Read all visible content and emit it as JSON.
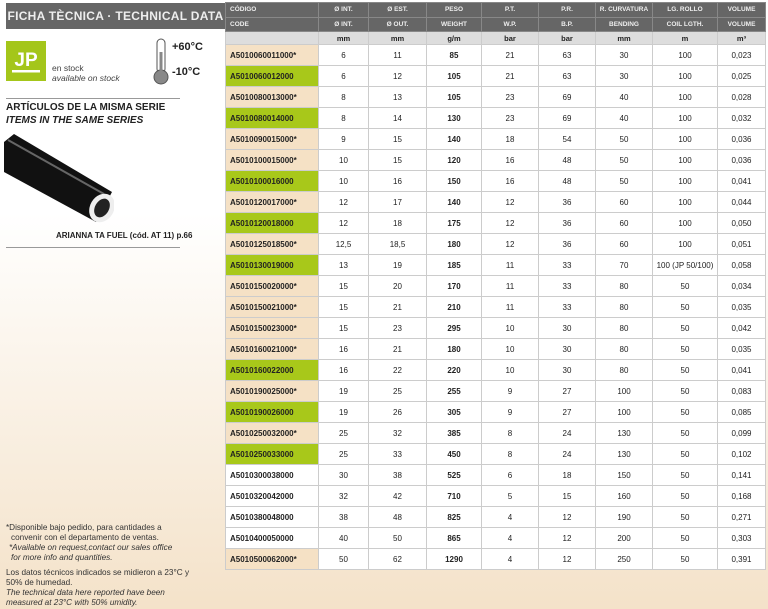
{
  "title": "FICHA TÈCNICA · TECHNICAL DATA",
  "logo": "JP",
  "stock": {
    "es": "en stock",
    "en": "available on stock"
  },
  "temperature": {
    "max": "+60°C",
    "min": "-10°C"
  },
  "series": {
    "es": "ARTÍCULOS DE LA MISMA SERIE",
    "en": "ITEMS IN THE SAME SERIES",
    "caption": "ARIANNA TA FUEL (cód. AT 11) p.66"
  },
  "notes": {
    "n1": "*Disponible bajo pedido, para cantidades a",
    "n2": "convenir con el departamento de ventas.",
    "n3": "*Available on request,contact our sales office",
    "n4": "for more info and quantities.",
    "n5": "Los datos técnicos indicados se midieron a 23°C y",
    "n6": "50% de humedad.",
    "n7": "The technical data here reported have been",
    "n8": "measured at 23°C with 50% umidity."
  },
  "colors": {
    "green": "#a8c81a",
    "beige": "#f5e1c5",
    "header": "#666666"
  },
  "table": {
    "header_es": [
      "CÓDIGO",
      "Ø INT.",
      "Ø EST.",
      "PESO",
      "P.T.",
      "P.R.",
      "R. CURVATURA",
      "LG. ROLLO",
      "VOLUME"
    ],
    "header_en": [
      "CODE",
      "Ø INT.",
      "Ø OUT.",
      "WEIGHT",
      "W.P.",
      "B.P.",
      "BENDING",
      "COIL LGTH.",
      "VOLUME"
    ],
    "units": [
      "",
      "mm",
      "mm",
      "g/m",
      "bar",
      "bar",
      "mm",
      "m",
      "m³"
    ],
    "rows": [
      {
        "status": "beige",
        "cells": [
          "A5010060011000*",
          "6",
          "11",
          "85",
          "21",
          "63",
          "30",
          "100",
          "0,023"
        ]
      },
      {
        "status": "green",
        "cells": [
          "A5010060012000",
          "6",
          "12",
          "105",
          "21",
          "63",
          "30",
          "100",
          "0,025"
        ]
      },
      {
        "status": "beige",
        "cells": [
          "A5010080013000*",
          "8",
          "13",
          "105",
          "23",
          "69",
          "40",
          "100",
          "0,028"
        ]
      },
      {
        "status": "green",
        "cells": [
          "A5010080014000",
          "8",
          "14",
          "130",
          "23",
          "69",
          "40",
          "100",
          "0,032"
        ]
      },
      {
        "status": "beige",
        "cells": [
          "A5010090015000*",
          "9",
          "15",
          "140",
          "18",
          "54",
          "50",
          "100",
          "0,036"
        ]
      },
      {
        "status": "beige",
        "cells": [
          "A5010100015000*",
          "10",
          "15",
          "120",
          "16",
          "48",
          "50",
          "100",
          "0,036"
        ]
      },
      {
        "status": "green",
        "cells": [
          "A5010100016000",
          "10",
          "16",
          "150",
          "16",
          "48",
          "50",
          "100",
          "0,041"
        ]
      },
      {
        "status": "beige",
        "cells": [
          "A5010120017000*",
          "12",
          "17",
          "140",
          "12",
          "36",
          "60",
          "100",
          "0,044"
        ]
      },
      {
        "status": "green",
        "cells": [
          "A5010120018000",
          "12",
          "18",
          "175",
          "12",
          "36",
          "60",
          "100",
          "0,050"
        ]
      },
      {
        "status": "beige",
        "cells": [
          "A5010125018500*",
          "12,5",
          "18,5",
          "180",
          "12",
          "36",
          "60",
          "100",
          "0,051"
        ]
      },
      {
        "status": "green",
        "cells": [
          "A5010130019000",
          "13",
          "19",
          "185",
          "11",
          "33",
          "70",
          "100 (JP 50/100)",
          "0,058"
        ]
      },
      {
        "status": "beige",
        "cells": [
          "A5010150020000*",
          "15",
          "20",
          "170",
          "11",
          "33",
          "80",
          "50",
          "0,034"
        ]
      },
      {
        "status": "beige",
        "cells": [
          "A5010150021000*",
          "15",
          "21",
          "210",
          "11",
          "33",
          "80",
          "50",
          "0,035"
        ]
      },
      {
        "status": "beige",
        "cells": [
          "A5010150023000*",
          "15",
          "23",
          "295",
          "10",
          "30",
          "80",
          "50",
          "0,042"
        ]
      },
      {
        "status": "beige",
        "cells": [
          "A5010160021000*",
          "16",
          "21",
          "180",
          "10",
          "30",
          "80",
          "50",
          "0,035"
        ]
      },
      {
        "status": "green",
        "cells": [
          "A5010160022000",
          "16",
          "22",
          "220",
          "10",
          "30",
          "80",
          "50",
          "0,041"
        ]
      },
      {
        "status": "beige",
        "cells": [
          "A5010190025000*",
          "19",
          "25",
          "255",
          "9",
          "27",
          "100",
          "50",
          "0,083"
        ]
      },
      {
        "status": "green",
        "cells": [
          "A5010190026000",
          "19",
          "26",
          "305",
          "9",
          "27",
          "100",
          "50",
          "0,085"
        ]
      },
      {
        "status": "beige",
        "cells": [
          "A5010250032000*",
          "25",
          "32",
          "385",
          "8",
          "24",
          "130",
          "50",
          "0,099"
        ]
      },
      {
        "status": "green",
        "cells": [
          "A5010250033000",
          "25",
          "33",
          "450",
          "8",
          "24",
          "130",
          "50",
          "0,102"
        ]
      },
      {
        "status": "white",
        "cells": [
          "A5010300038000",
          "30",
          "38",
          "525",
          "6",
          "18",
          "150",
          "50",
          "0,141"
        ]
      },
      {
        "status": "white",
        "cells": [
          "A5010320042000",
          "32",
          "42",
          "710",
          "5",
          "15",
          "160",
          "50",
          "0,168"
        ]
      },
      {
        "status": "white",
        "cells": [
          "A5010380048000",
          "38",
          "48",
          "825",
          "4",
          "12",
          "190",
          "50",
          "0,271"
        ]
      },
      {
        "status": "white",
        "cells": [
          "A5010400050000",
          "40",
          "50",
          "865",
          "4",
          "12",
          "200",
          "50",
          "0,303"
        ]
      },
      {
        "status": "beige",
        "cells": [
          "A5010500062000*",
          "50",
          "62",
          "1290",
          "4",
          "12",
          "250",
          "50",
          "0,391"
        ]
      }
    ]
  }
}
